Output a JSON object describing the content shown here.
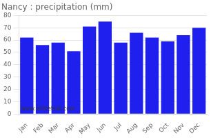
{
  "chart_data": {
    "type": "bar",
    "title": "Nancy : precipitation (mm)",
    "categories": [
      "Jan",
      "Feb",
      "Mar",
      "Apr",
      "May",
      "Jun",
      "Jul",
      "Aug",
      "Sep",
      "Oct",
      "Nov",
      "Dec"
    ],
    "values": [
      62,
      56,
      58,
      51,
      71,
      75,
      58,
      66,
      62,
      59,
      64,
      70
    ],
    "color": "#2020ee",
    "ylim": [
      0,
      80
    ],
    "yticks": [
      0,
      10,
      20,
      30,
      40,
      50,
      60,
      70,
      80
    ],
    "grid": true,
    "annotations": [
      "www.allmetsat.com"
    ]
  }
}
